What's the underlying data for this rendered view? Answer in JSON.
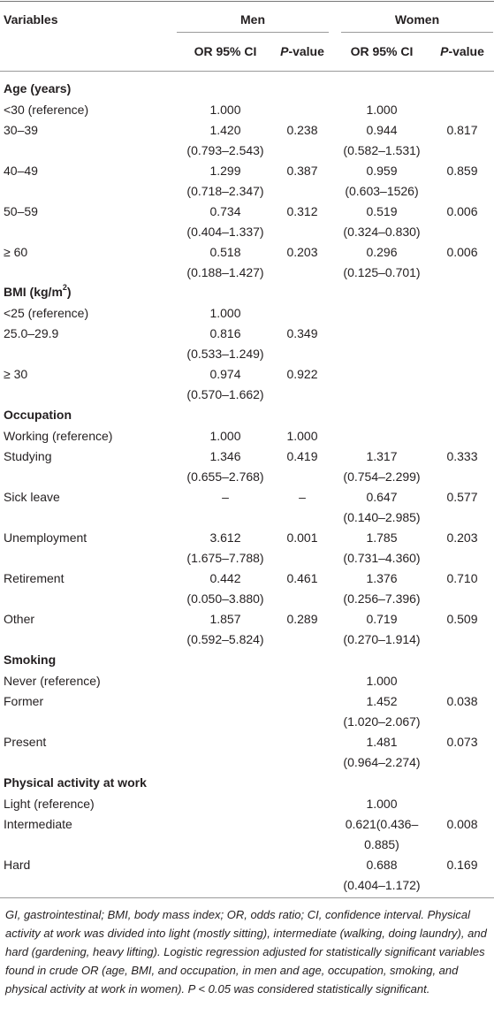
{
  "header": {
    "variables": "Variables",
    "men": "Men",
    "women": "Women",
    "or_ci": "OR 95% CI",
    "p_italic": "P",
    "p_rest": "-value"
  },
  "sections": [
    {
      "title": "Age (years)",
      "title_sup": "",
      "title_after": "",
      "rows": [
        {
          "label": "<30 (reference)",
          "men_or": "1.000",
          "men_ci": "",
          "men_p": "",
          "women_or": "1.000",
          "women_ci": "",
          "women_p": ""
        },
        {
          "label": "30–39",
          "men_or": "1.420",
          "men_ci": "(0.793–2.543)",
          "men_p": "0.238",
          "women_or": "0.944",
          "women_ci": "(0.582–1.531)",
          "women_p": "0.817"
        },
        {
          "label": "40–49",
          "men_or": "1.299",
          "men_ci": "(0.718–2.347)",
          "men_p": "0.387",
          "women_or": "0.959",
          "women_ci": "(0.603–1526)",
          "women_p": "0.859"
        },
        {
          "label": "50–59",
          "men_or": "0.734",
          "men_ci": "(0.404–1.337)",
          "men_p": "0.312",
          "women_or": "0.519",
          "women_ci": "(0.324–0.830)",
          "women_p": "0.006"
        },
        {
          "label": "≥ 60",
          "men_or": "0.518",
          "men_ci": "(0.188–1.427)",
          "men_p": "0.203",
          "women_or": "0.296",
          "women_ci": "(0.125–0.701)",
          "women_p": "0.006"
        }
      ]
    },
    {
      "title": "BMI (kg/m",
      "title_sup": "2",
      "title_after": ")",
      "rows": [
        {
          "label": "<25 (reference)",
          "men_or": "1.000",
          "men_ci": "",
          "men_p": "",
          "women_or": "",
          "women_ci": "",
          "women_p": ""
        },
        {
          "label": "25.0–29.9",
          "men_or": "0.816",
          "men_ci": "(0.533–1.249)",
          "men_p": "0.349",
          "women_or": "",
          "women_ci": "",
          "women_p": ""
        },
        {
          "label": "≥ 30",
          "men_or": "0.974",
          "men_ci": "(0.570–1.662)",
          "men_p": "0.922",
          "women_or": "",
          "women_ci": "",
          "women_p": ""
        }
      ]
    },
    {
      "title": "Occupation",
      "title_sup": "",
      "title_after": "",
      "rows": [
        {
          "label": "Working (reference)",
          "men_or": "1.000",
          "men_ci": "",
          "men_p": "1.000",
          "women_or": "",
          "women_ci": "",
          "women_p": ""
        },
        {
          "label": "Studying",
          "men_or": "1.346",
          "men_ci": "(0.655–2.768)",
          "men_p": "0.419",
          "women_or": "1.317",
          "women_ci": "(0.754–2.299)",
          "women_p": "0.333"
        },
        {
          "label": "Sick leave",
          "men_or": "–",
          "men_ci": "",
          "men_p": "–",
          "women_or": "0.647",
          "women_ci": "(0.140–2.985)",
          "women_p": "0.577"
        },
        {
          "label": "Unemployment",
          "men_or": "3.612",
          "men_ci": "(1.675–7.788)",
          "men_p": "0.001",
          "women_or": "1.785",
          "women_ci": "(0.731–4.360)",
          "women_p": "0.203"
        },
        {
          "label": "Retirement",
          "men_or": "0.442",
          "men_ci": "(0.050–3.880)",
          "men_p": "0.461",
          "women_or": "1.376",
          "women_ci": "(0.256–7.396)",
          "women_p": "0.710"
        },
        {
          "label": "Other",
          "men_or": "1.857",
          "men_ci": "(0.592–5.824)",
          "men_p": "0.289",
          "women_or": "0.719",
          "women_ci": "(0.270–1.914)",
          "women_p": "0.509"
        }
      ]
    },
    {
      "title": "Smoking",
      "title_sup": "",
      "title_after": "",
      "rows": [
        {
          "label": "Never (reference)",
          "men_or": "",
          "men_ci": "",
          "men_p": "",
          "women_or": "1.000",
          "women_ci": "",
          "women_p": ""
        },
        {
          "label": "Former",
          "men_or": "",
          "men_ci": "",
          "men_p": "",
          "women_or": "1.452",
          "women_ci": "(1.020–2.067)",
          "women_p": "0.038"
        },
        {
          "label": "Present",
          "men_or": "",
          "men_ci": "",
          "men_p": "",
          "women_or": "1.481",
          "women_ci": "(0.964–2.274)",
          "women_p": "0.073"
        }
      ]
    },
    {
      "title": "Physical activity at work",
      "title_sup": "",
      "title_after": "",
      "rows": [
        {
          "label": "Light (reference)",
          "men_or": "",
          "men_ci": "",
          "men_p": "",
          "women_or": "1.000",
          "women_ci": "",
          "women_p": ""
        },
        {
          "label": "Intermediate",
          "men_or": "",
          "men_ci": "",
          "men_p": "",
          "women_or": "0.621(0.436–",
          "women_ci": "0.885)",
          "women_p": "0.008"
        },
        {
          "label": "Hard",
          "men_or": "",
          "men_ci": "",
          "men_p": "",
          "women_or": "0.688",
          "women_ci": "(0.404–1.172)",
          "women_p": "0.169"
        }
      ]
    }
  ],
  "footnote": "GI, gastrointestinal; BMI, body mass index; OR, odds ratio; CI, confidence interval. Physical activity at work was divided into light (mostly sitting), intermediate (walking, doing laundry), and hard (gardening, heavy lifting). Logistic regression adjusted for statistically significant variables found in crude OR (age, BMI, and occupation, in men and age, occupation, smoking, and physical activity at work in women). P < 0.05 was considered statistically significant."
}
